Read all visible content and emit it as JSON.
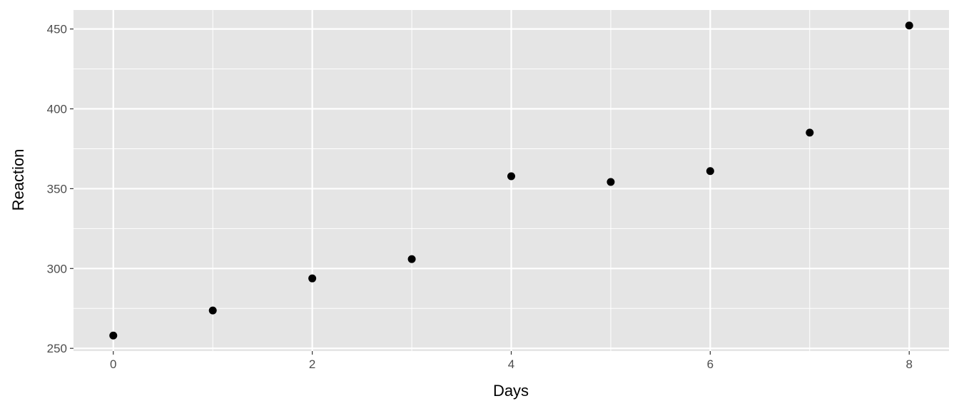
{
  "chart_data": {
    "type": "scatter",
    "title": "",
    "xlabel": "Days",
    "ylabel": "Reaction",
    "xlim": [
      -0.4,
      8.4
    ],
    "ylim": [
      248.3,
      461.9
    ],
    "xticks": [
      0,
      2,
      4,
      6,
      8
    ],
    "yticks": [
      250,
      300,
      350,
      400,
      450
    ],
    "xminor": [
      1,
      3,
      5,
      7
    ],
    "yminor": [
      275,
      325,
      375,
      425
    ],
    "grid": true,
    "panel_background": "#e5e5e5",
    "point_color": "#000000",
    "x": [
      0,
      1,
      2,
      3,
      4,
      5,
      6,
      7,
      8
    ],
    "y": [
      258.0,
      273.7,
      293.8,
      305.9,
      357.8,
      354.2,
      361.0,
      385.1,
      452.2
    ]
  }
}
